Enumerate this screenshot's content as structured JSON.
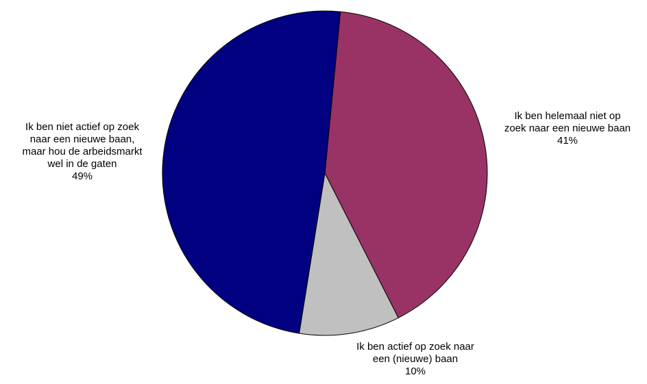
{
  "chart_data": {
    "type": "pie",
    "title": "",
    "start_angle_deg": 5.5,
    "direction": "clockwise",
    "slices": [
      {
        "label_lines": [
          "Ik ben helemaal niet op",
          "zoek naar een nieuwe baan"
        ],
        "value": 41,
        "value_label": "41%",
        "color": "#993366"
      },
      {
        "label_lines": [
          "Ik ben actief op zoek naar",
          "een (nieuwe) baan"
        ],
        "value": 10,
        "value_label": "10%",
        "color": "#c0c0c0"
      },
      {
        "label_lines": [
          "Ik ben niet actief op zoek",
          "naar een nieuwe baan,",
          "maar hou de arbeidsmarkt",
          "wel in de gaten"
        ],
        "value": 49,
        "value_label": "49%",
        "color": "#000080"
      }
    ],
    "slice_stroke": "#000000",
    "legend": "none"
  }
}
